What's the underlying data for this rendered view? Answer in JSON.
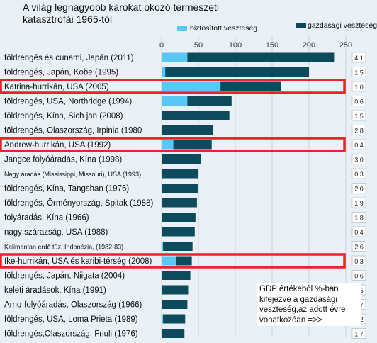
{
  "title_lines": [
    "A világ legnagyobb károkat okozó természeti",
    "katasztrófái 1965-től"
  ],
  "note": "GDP értékéből %-ban kifejezve a gazdasági veszteség,az adott évre vonatkozóan =>>",
  "colors": {
    "insured": "#5ac8f5",
    "economic": "#0d4a5c",
    "highlight": "#e8232a",
    "bg": "#e9f1f6"
  },
  "chart_data": {
    "type": "bar",
    "orientation": "horizontal",
    "stacked": false,
    "xlim": [
      0,
      250
    ],
    "xticks": [
      0,
      50,
      100,
      150,
      200,
      250
    ],
    "grid": true,
    "legend": "top",
    "series": [
      {
        "name": "biztosított veszteség",
        "color": "#5ac8f5",
        "values": [
          35,
          5,
          80,
          35,
          0,
          0,
          16,
          0,
          0,
          0,
          0,
          0,
          0,
          2,
          20,
          0,
          0,
          0,
          2,
          0
        ]
      },
      {
        "name": "gazdasági veszteség",
        "color": "#0d4a5c",
        "values": [
          235,
          200,
          162,
          95,
          92,
          70,
          68,
          53,
          50,
          49,
          48,
          46,
          45,
          42,
          41,
          39,
          37,
          35,
          32,
          31
        ]
      }
    ],
    "categories": [
      "földrengés és cunami, Japán (2011)",
      "földrengés, Japán, Kobe (1995)",
      "Katrina-hurrikán, USA (2005)",
      "földrengés, USA, Northridge (1994)",
      "földrengés, Kína, Sich jan (2008)",
      "földrengés, Olaszország, Irpinia (1980",
      "Andrew-hurrikán, USA (1992)",
      "Jangce folyóáradás, Kína (1998)",
      "Nagy áradás (Mississippi, Missouri), USA (1993)",
      "földrengés, Kína, Tangshan (1976)",
      "földrengés, Örményország, Spitak (1988)",
      "folyáradás, Kína (1966)",
      "nagy szárazság, USA (1988)",
      "Kalimantan erdő tűz, Indonézia, (1982-83)",
      "Ike-hurrikán, USA és karibi-térség (2008)",
      "földrengés, Japán, Niigata (2004)",
      "keleti áradások, Kína (1991)",
      "Arno-folyóáradás, Olaszország (1966)",
      "földrengés, USA, Loma Prieta (1989)",
      "földrengés,Olaszország, Friuli (1976)"
    ],
    "small_label_rows": [
      8,
      13
    ],
    "gdp_pct": [
      "4.1",
      "1.5",
      "1.0",
      "0.6",
      "1.5",
      "2.8",
      "0.4",
      "3.0",
      "0.3",
      "2.0",
      "1.9",
      "1.8",
      "0.4",
      "2.6",
      "0.3",
      "0.6",
      "0.5",
      "2.7",
      "0.2",
      "1.7"
    ],
    "highlighted_rows": [
      2,
      6,
      14
    ]
  }
}
